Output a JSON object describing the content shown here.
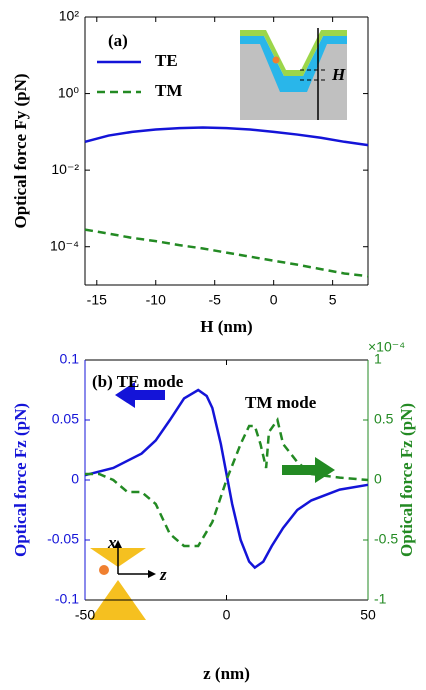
{
  "chart_data": [
    {
      "type": "line",
      "annotation": "(a)",
      "inset_label": "H",
      "x": [
        -16,
        -14,
        -12,
        -10,
        -8,
        -6,
        -4,
        -2,
        0,
        2,
        4,
        6,
        8
      ],
      "xlim": [
        -16,
        8
      ],
      "xticks": [
        -15,
        -10,
        -5,
        0,
        5
      ],
      "ylim": [
        1e-05,
        100
      ],
      "ylog": true,
      "yticks": [
        {
          "value": 0.0001,
          "label": "10⁻⁴"
        },
        {
          "value": 0.01,
          "label": "10⁻²"
        },
        {
          "value": 1,
          "label": "10⁰"
        },
        {
          "value": 100,
          "label": "10²"
        }
      ],
      "xlabel": "H (nm)",
      "ylabel": "Optical force Fy (pN)",
      "legend": "upper left",
      "series": [
        {
          "name": "TE",
          "color": "#1414d8",
          "dashed": false,
          "values": [
            0.055,
            0.08,
            0.1,
            0.115,
            0.125,
            0.13,
            0.125,
            0.115,
            0.1,
            0.085,
            0.07,
            0.055,
            0.045
          ]
        },
        {
          "name": "TM",
          "color": "#238a23",
          "dashed": true,
          "values": [
            0.00028,
            0.00022,
            0.00017,
            0.00014,
            0.00011,
            9e-05,
            7e-05,
            5.5e-05,
            4.3e-05,
            3.4e-05,
            2.6e-05,
            2e-05,
            1.7e-05
          ]
        }
      ]
    },
    {
      "type": "line",
      "annotations": [
        "(b) TE mode",
        "TM mode"
      ],
      "inset_labels": [
        "x",
        "z"
      ],
      "xlim": [
        -50,
        50
      ],
      "xticks": [
        -50,
        0,
        50
      ],
      "ylim": [
        -0.1,
        0.1
      ],
      "yticks": [
        -0.1,
        -0.05,
        0,
        0.05,
        0.1
      ],
      "y2lim": [
        -1,
        1
      ],
      "y2ticks": [
        -1,
        -0.5,
        0,
        0.5,
        1
      ],
      "y2_exponent": "×10⁻⁴",
      "xlabel": "z (nm)",
      "ylabel": "Optical force Fz (pN)",
      "y2label": "Optical force Fz (pN)",
      "series": [
        {
          "name": "TE",
          "color": "#1414d8",
          "dashed": false,
          "axis": "y",
          "x": [
            -50,
            -40,
            -30,
            -25,
            -20,
            -15,
            -10,
            -7,
            -5,
            -2,
            0,
            2,
            5,
            8,
            10,
            13,
            16,
            20,
            25,
            30,
            40,
            50
          ],
          "values": [
            0.004,
            0.01,
            0.022,
            0.033,
            0.05,
            0.068,
            0.075,
            0.07,
            0.06,
            0.03,
            0.005,
            -0.02,
            -0.05,
            -0.068,
            -0.073,
            -0.068,
            -0.055,
            -0.04,
            -0.025,
            -0.017,
            -0.008,
            -0.004
          ]
        },
        {
          "name": "TM",
          "color": "#238a23",
          "dashed": true,
          "axis": "y2",
          "x": [
            -50,
            -45,
            -40,
            -35,
            -30,
            -25,
            -20,
            -15,
            -10,
            -5,
            0,
            5,
            8,
            10,
            12,
            14,
            15,
            18,
            20,
            25,
            30,
            40,
            50
          ],
          "values": [
            0.05,
            0.05,
            0,
            -0.1,
            -0.1,
            -0.2,
            -0.45,
            -0.55,
            -0.55,
            -0.35,
            0,
            0.3,
            0.45,
            0.45,
            0.3,
            0.1,
            0.4,
            0.5,
            0.3,
            0.15,
            0.05,
            0.02,
            0
          ]
        }
      ]
    }
  ]
}
